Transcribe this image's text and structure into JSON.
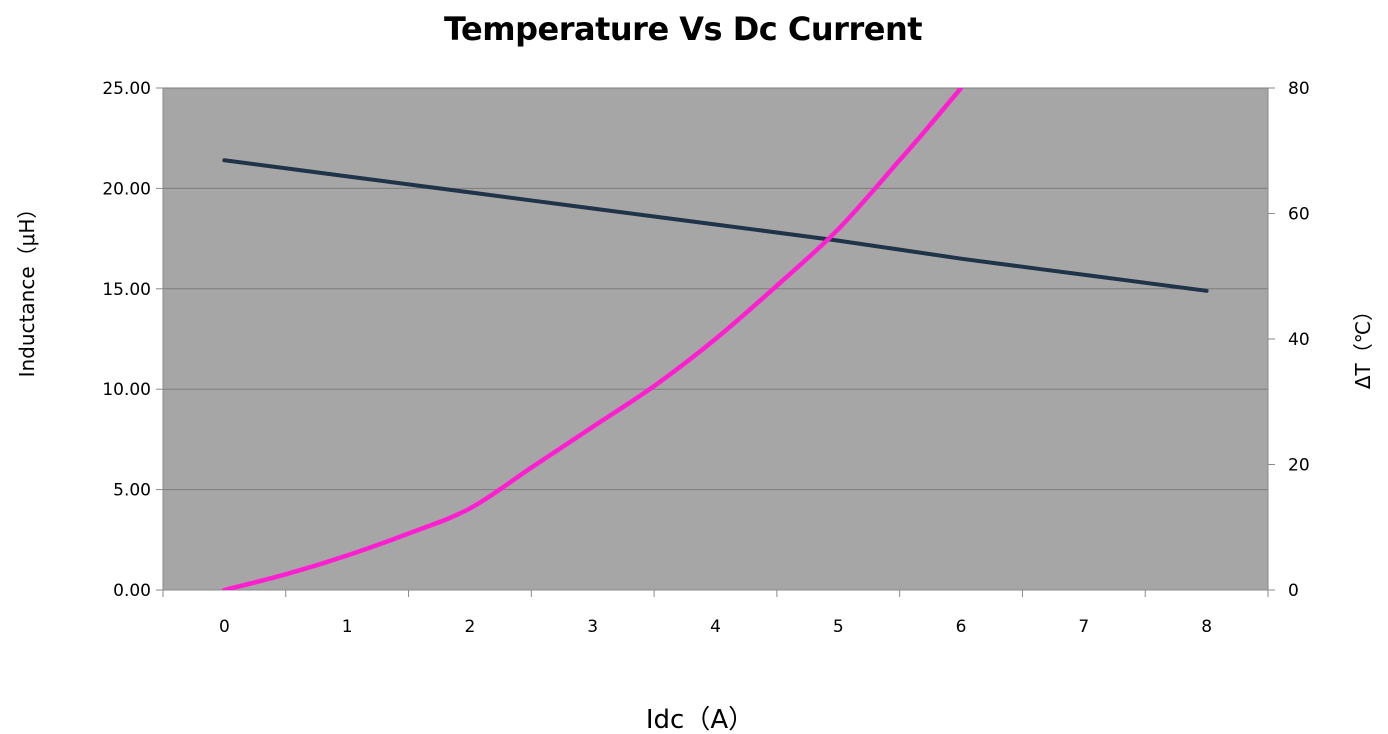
{
  "chart_data": {
    "type": "line",
    "title": "Temperature Vs Dc Current",
    "xlabel": "Idc（A）",
    "ylabel_left": "Inductance（μH）",
    "ylabel_right": "ΔT（℃）",
    "x_categories": [
      "0",
      "1",
      "2",
      "3",
      "4",
      "5",
      "6",
      "7",
      "8"
    ],
    "y_left": {
      "range": [
        0,
        25
      ],
      "ticks": [
        0,
        5,
        10,
        15,
        20,
        25
      ],
      "tick_labels": [
        "0.00",
        "5.00",
        "10.00",
        "15.00",
        "20.00",
        "25.00"
      ]
    },
    "y_right": {
      "range": [
        0,
        80
      ],
      "ticks": [
        0,
        20,
        40,
        60,
        80
      ],
      "tick_labels": [
        "0",
        "20",
        "40",
        "60",
        "80"
      ]
    },
    "grid": true,
    "plot_background": "#a6a6a6",
    "series": [
      {
        "axis": "left",
        "color": "#1f3349",
        "x": [
          0,
          1,
          2,
          3,
          4,
          5,
          6,
          7,
          8
        ],
        "values": [
          21.4,
          20.6,
          19.8,
          19.0,
          18.2,
          17.4,
          16.5,
          15.7,
          14.9
        ]
      },
      {
        "axis": "right",
        "color": "#ff1fd1",
        "x": [
          0,
          0.5,
          1,
          1.5,
          2,
          2.5,
          3,
          3.5,
          4,
          4.5,
          5,
          5.5,
          5.7,
          6
        ],
        "values": [
          0,
          2.5,
          5.5,
          9,
          13,
          19.5,
          26,
          32.5,
          40,
          48.5,
          57.5,
          68.5,
          73,
          80
        ]
      }
    ]
  }
}
